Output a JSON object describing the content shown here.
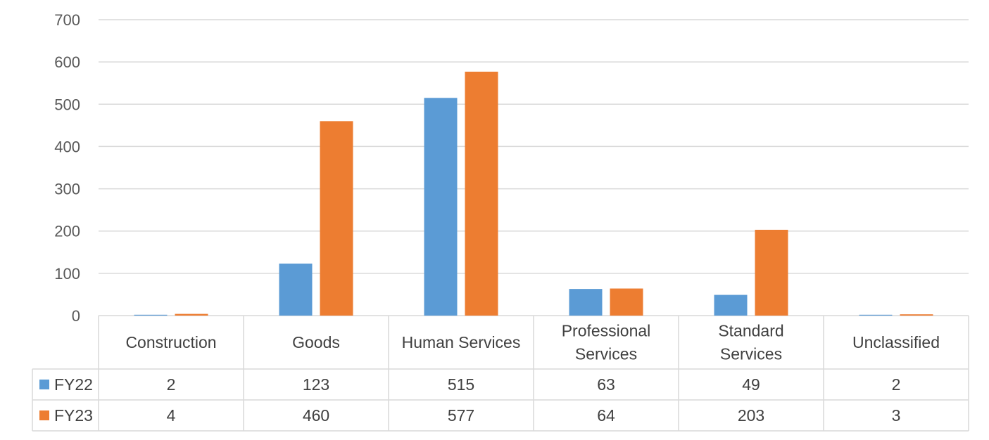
{
  "chart_data": {
    "type": "bar",
    "categories": [
      [
        "Construction"
      ],
      [
        "Goods"
      ],
      [
        "Human Services"
      ],
      [
        "Professional",
        "Services"
      ],
      [
        "Standard",
        "Services"
      ],
      [
        "Unclassified"
      ]
    ],
    "series": [
      {
        "name": "FY22",
        "color": "#5b9bd5",
        "values": [
          2,
          123,
          515,
          63,
          49,
          2
        ]
      },
      {
        "name": "FY23",
        "color": "#ed7d31",
        "values": [
          4,
          460,
          577,
          64,
          203,
          3
        ]
      }
    ],
    "ylim": [
      0,
      700
    ],
    "yticks": [
      0,
      100,
      200,
      300,
      400,
      500,
      600,
      700
    ],
    "grid": true,
    "data_table": true
  }
}
